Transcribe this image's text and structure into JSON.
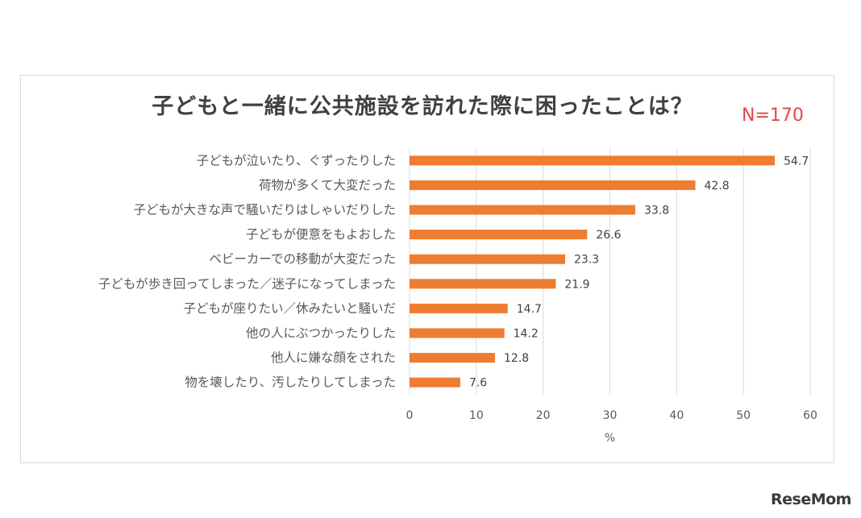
{
  "chart_data": {
    "type": "bar",
    "orientation": "horizontal",
    "title": "子どもと一緒に公共施設を訪れた際に困ったことは？",
    "sample_size": "N=170",
    "categories": [
      "子どもが泣いたり、ぐずったりした",
      "荷物が多くて大変だった",
      "子どもが大きな声で騒いだりはしゃいだりした",
      "子どもが便意をもよおした",
      "ベビーカーでの移動が大変だった",
      "子どもが歩き回ってしまった／迷子になってしまった",
      "子どもが座りたい／休みたいと騒いだ",
      "他の人にぶつかったりした",
      "他人に嫌な顔をされた",
      "物を壊したり、汚したりしてしまった"
    ],
    "values": [
      54.7,
      42.8,
      33.8,
      26.6,
      23.3,
      21.9,
      14.7,
      14.2,
      12.8,
      7.6
    ],
    "xlabel": "%",
    "ylabel": "",
    "xlim": [
      0,
      60
    ],
    "xticks": [
      0,
      10,
      20,
      30,
      40,
      50,
      60
    ],
    "grid": true,
    "legend": "none",
    "bar_color": "#ed7d31",
    "grid_color": "#d9d9d9"
  },
  "watermark": "ReseMom"
}
